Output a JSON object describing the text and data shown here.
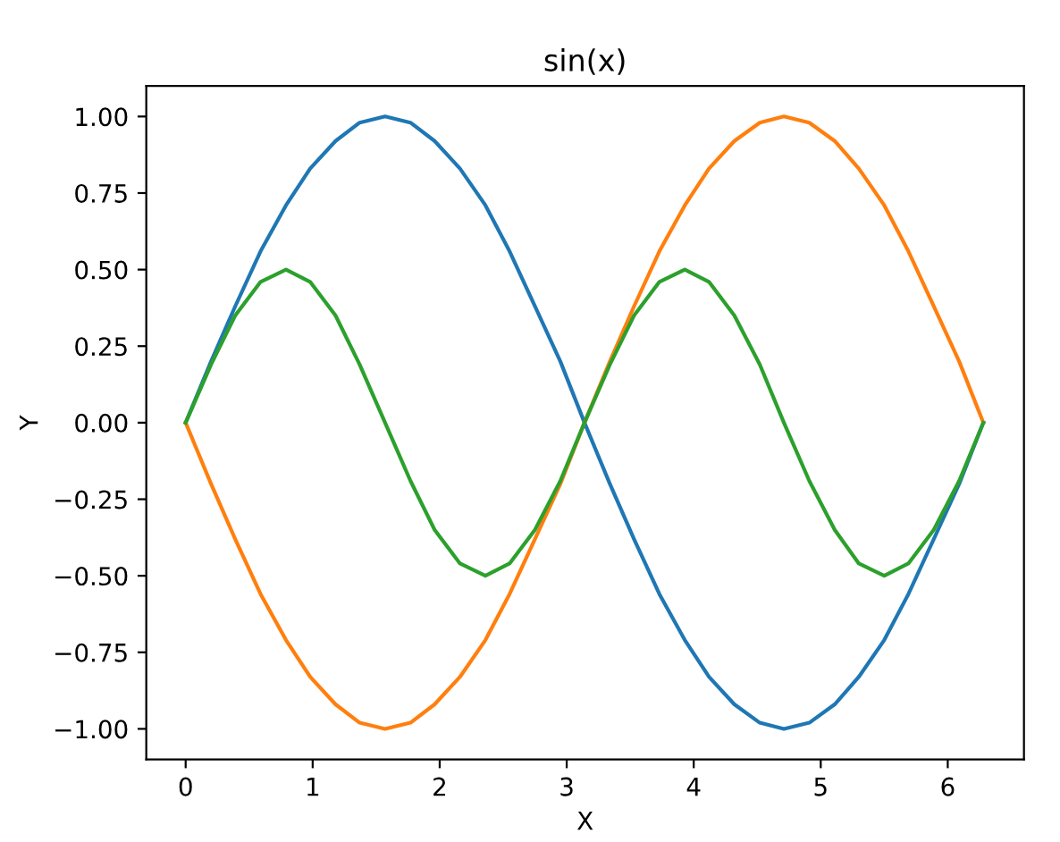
{
  "chart_data": {
    "type": "line",
    "title": "sin(x)",
    "xlabel": "X",
    "ylabel": "Y",
    "x": [
      0,
      0.2,
      0.39,
      0.59,
      0.79,
      0.98,
      1.18,
      1.37,
      1.57,
      1.77,
      1.96,
      2.16,
      2.36,
      2.55,
      2.75,
      2.95,
      3.14,
      3.34,
      3.53,
      3.73,
      3.93,
      4.12,
      4.32,
      4.52,
      4.71,
      4.91,
      5.11,
      5.3,
      5.5,
      5.69,
      5.89,
      6.09,
      6.28
    ],
    "series": [
      {
        "color": "#1f77b4",
        "values": [
          0,
          0.2,
          0.38,
          0.56,
          0.71,
          0.83,
          0.92,
          0.98,
          1,
          0.98,
          0.92,
          0.83,
          0.71,
          0.56,
          0.38,
          0.2,
          0,
          -0.2,
          -0.38,
          -0.56,
          -0.71,
          -0.83,
          -0.92,
          -0.98,
          -1,
          -0.98,
          -0.92,
          -0.83,
          -0.71,
          -0.56,
          -0.38,
          -0.2,
          0
        ]
      },
      {
        "color": "#ff7f0e",
        "values": [
          0,
          -0.2,
          -0.38,
          -0.56,
          -0.71,
          -0.83,
          -0.92,
          -0.98,
          -1,
          -0.98,
          -0.92,
          -0.83,
          -0.71,
          -0.56,
          -0.38,
          -0.2,
          0,
          0.2,
          0.38,
          0.56,
          0.71,
          0.83,
          0.92,
          0.98,
          1,
          0.98,
          0.92,
          0.83,
          0.71,
          0.56,
          0.38,
          0.2,
          0
        ]
      },
      {
        "color": "#2ca02c",
        "values": [
          0,
          0.19,
          0.35,
          0.46,
          0.5,
          0.46,
          0.35,
          0.19,
          0,
          -0.19,
          -0.35,
          -0.46,
          -0.5,
          -0.46,
          -0.35,
          -0.19,
          0,
          0.19,
          0.35,
          0.46,
          0.5,
          0.46,
          0.35,
          0.19,
          0,
          -0.19,
          -0.35,
          -0.46,
          -0.5,
          -0.46,
          -0.35,
          -0.19,
          0
        ]
      }
    ],
    "xlim": [
      -0.31,
      6.6
    ],
    "xticks": [
      0,
      1,
      2,
      3,
      4,
      5,
      6
    ],
    "ylim": [
      -1.1,
      1.1
    ],
    "yticks": [
      {
        "value": -1,
        "label": "−1.00"
      },
      {
        "value": -0.75,
        "label": "−0.75"
      },
      {
        "value": -0.5,
        "label": "−0.50"
      },
      {
        "value": -0.25,
        "label": "−0.25"
      },
      {
        "value": 0,
        "label": "0.00"
      },
      {
        "value": 0.25,
        "label": "0.25"
      },
      {
        "value": 0.5,
        "label": "0.50"
      },
      {
        "value": 0.75,
        "label": "0.75"
      },
      {
        "value": 1,
        "label": "1.00"
      }
    ],
    "grid": false,
    "legend": false,
    "marker": "none",
    "line_style": "solid"
  }
}
